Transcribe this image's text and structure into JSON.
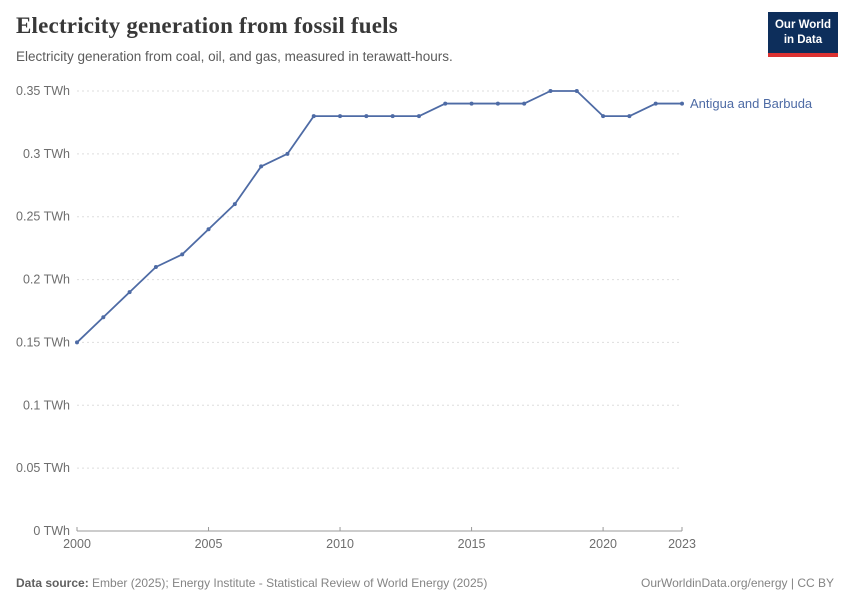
{
  "header": {
    "title": "Electricity generation from fossil fuels",
    "subtitle": "Electricity generation from coal, oil, and gas, measured in terawatt-hours.",
    "logo": {
      "line1": "Our World",
      "line2": "in Data",
      "bg_color": "#0d2e5b",
      "accent_color": "#dc3232"
    }
  },
  "chart_data": {
    "type": "line",
    "title": "Electricity generation from fossil fuels",
    "xlabel": "",
    "ylabel": "TWh",
    "xlim": [
      2000,
      2023
    ],
    "ylim": [
      0,
      0.35
    ],
    "grid": true,
    "legend_position": "end-of-line",
    "x": [
      2000,
      2001,
      2002,
      2003,
      2004,
      2005,
      2006,
      2007,
      2008,
      2009,
      2010,
      2011,
      2012,
      2013,
      2014,
      2015,
      2016,
      2017,
      2018,
      2019,
      2020,
      2021,
      2022,
      2023
    ],
    "series": [
      {
        "name": "Antigua and Barbuda",
        "color": "#4e6ba5",
        "values": [
          0.15,
          0.17,
          0.19,
          0.21,
          0.22,
          0.24,
          0.26,
          0.29,
          0.3,
          0.33,
          0.33,
          0.33,
          0.33,
          0.33,
          0.34,
          0.34,
          0.34,
          0.34,
          0.35,
          0.35,
          0.33,
          0.33,
          0.34,
          0.34
        ]
      }
    ],
    "y_ticks": [
      {
        "value": 0,
        "label": "0 TWh"
      },
      {
        "value": 0.05,
        "label": "0.05 TWh"
      },
      {
        "value": 0.1,
        "label": "0.1 TWh"
      },
      {
        "value": 0.15,
        "label": "0.15 TWh"
      },
      {
        "value": 0.2,
        "label": "0.2 TWh"
      },
      {
        "value": 0.25,
        "label": "0.25 TWh"
      },
      {
        "value": 0.3,
        "label": "0.3 TWh"
      },
      {
        "value": 0.35,
        "label": "0.35 TWh"
      }
    ],
    "x_ticks": [
      {
        "value": 2000,
        "label": "2000"
      },
      {
        "value": 2005,
        "label": "2005"
      },
      {
        "value": 2010,
        "label": "2010"
      },
      {
        "value": 2015,
        "label": "2015"
      },
      {
        "value": 2020,
        "label": "2020"
      },
      {
        "value": 2023,
        "label": "2023"
      }
    ]
  },
  "footer": {
    "source_label": "Data source:",
    "source_text": " Ember (2025); Energy Institute - Statistical Review of World Energy (2025)",
    "credit": "OurWorldinData.org/energy | CC BY"
  },
  "colors": {
    "gridline": "#dedede",
    "axis": "#999999",
    "tick_label": "#6e6e6e",
    "title": "#383838",
    "subtitle": "#5b5b5b"
  }
}
